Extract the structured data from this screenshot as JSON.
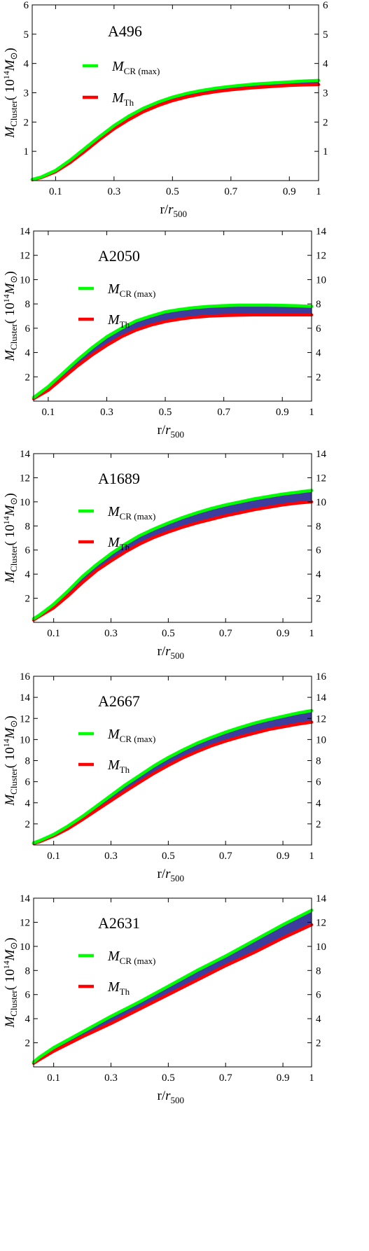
{
  "colors": {
    "upper_line": "#00ff00",
    "lower_line": "#ff0000",
    "band_fill": "#3d3d9e",
    "axis": "#000000"
  },
  "shared": {
    "xlabel_main": "r/",
    "xlabel_r": "r",
    "xlabel_sub": "500",
    "ylabel_M": "M",
    "ylabel_sub": "Cluster",
    "ylabel_open": "( 10",
    "ylabel_sup": "14",
    "ylabel_M2": "M",
    "ylabel_sun": "⊙",
    "ylabel_close": ")",
    "legend_upper_M": "M",
    "legend_upper_sub": "CR (max)",
    "legend_lower_M": "M",
    "legend_lower_sub": "Th"
  },
  "chart_data": [
    {
      "type": "area",
      "title": "A496",
      "xlim": [
        0.02,
        1.0
      ],
      "ylim": [
        0,
        6
      ],
      "x_ticks": [
        "0.1",
        "0.3",
        "0.5",
        "0.7",
        "0.9",
        "1"
      ],
      "x_tick_values": [
        0.1,
        0.3,
        0.5,
        0.7,
        0.9,
        1.0
      ],
      "y_ticks": [
        "1",
        "2",
        "3",
        "4",
        "5",
        "6"
      ],
      "y_tick_values": [
        1,
        2,
        3,
        4,
        5,
        6
      ],
      "x": [
        0.02,
        0.05,
        0.1,
        0.15,
        0.2,
        0.25,
        0.3,
        0.35,
        0.4,
        0.45,
        0.5,
        0.55,
        0.6,
        0.65,
        0.7,
        0.75,
        0.8,
        0.85,
        0.9,
        0.95,
        1.0
      ],
      "series": [
        {
          "name": "M_CR(max)",
          "values": [
            0.04,
            0.12,
            0.35,
            0.7,
            1.1,
            1.5,
            1.88,
            2.2,
            2.47,
            2.68,
            2.85,
            2.98,
            3.08,
            3.16,
            3.22,
            3.27,
            3.31,
            3.34,
            3.37,
            3.4,
            3.42
          ]
        },
        {
          "name": "M_Th",
          "values": [
            0.03,
            0.1,
            0.3,
            0.62,
            1.0,
            1.4,
            1.77,
            2.08,
            2.35,
            2.56,
            2.73,
            2.86,
            2.96,
            3.04,
            3.1,
            3.15,
            3.19,
            3.22,
            3.25,
            3.27,
            3.28
          ]
        }
      ]
    },
    {
      "type": "area",
      "title": "A2050",
      "xlim": [
        0.05,
        1.0
      ],
      "ylim": [
        0,
        14
      ],
      "x_ticks": [
        "0.1",
        "0.3",
        "0.5",
        "0.7",
        "0.9",
        "1"
      ],
      "x_tick_values": [
        0.1,
        0.3,
        0.5,
        0.7,
        0.9,
        1.0
      ],
      "y_ticks": [
        "2",
        "4",
        "6",
        "8",
        "10",
        "12",
        "14"
      ],
      "y_tick_values": [
        2,
        4,
        6,
        8,
        10,
        12,
        14
      ],
      "x": [
        0.05,
        0.1,
        0.15,
        0.2,
        0.25,
        0.3,
        0.35,
        0.4,
        0.45,
        0.5,
        0.55,
        0.6,
        0.65,
        0.7,
        0.75,
        0.8,
        0.85,
        0.9,
        0.95,
        1.0
      ],
      "series": [
        {
          "name": "M_CR(max)",
          "values": [
            0.3,
            1.2,
            2.3,
            3.4,
            4.4,
            5.3,
            6.0,
            6.6,
            7.0,
            7.35,
            7.55,
            7.7,
            7.8,
            7.86,
            7.9,
            7.9,
            7.9,
            7.88,
            7.85,
            7.8
          ]
        },
        {
          "name": "M_Th",
          "values": [
            0.2,
            0.9,
            1.9,
            2.9,
            3.8,
            4.6,
            5.3,
            5.85,
            6.25,
            6.55,
            6.75,
            6.9,
            7.0,
            7.05,
            7.08,
            7.1,
            7.1,
            7.1,
            7.1,
            7.1
          ]
        }
      ]
    },
    {
      "type": "area",
      "title": "A1689",
      "xlim": [
        0.03,
        1.0
      ],
      "ylim": [
        0,
        14
      ],
      "x_ticks": [
        "0.1",
        "0.3",
        "0.5",
        "0.7",
        "0.9",
        "1"
      ],
      "x_tick_values": [
        0.1,
        0.3,
        0.5,
        0.7,
        0.9,
        1.0
      ],
      "y_ticks": [
        "2",
        "4",
        "6",
        "8",
        "10",
        "12",
        "14"
      ],
      "y_tick_values": [
        2,
        4,
        6,
        8,
        10,
        12,
        14
      ],
      "x": [
        0.03,
        0.05,
        0.1,
        0.15,
        0.2,
        0.25,
        0.3,
        0.35,
        0.4,
        0.45,
        0.5,
        0.55,
        0.6,
        0.65,
        0.7,
        0.75,
        0.8,
        0.85,
        0.9,
        0.95,
        1.0
      ],
      "series": [
        {
          "name": "M_CR(max)",
          "values": [
            0.3,
            0.6,
            1.5,
            2.6,
            3.8,
            4.8,
            5.7,
            6.5,
            7.2,
            7.75,
            8.25,
            8.7,
            9.1,
            9.45,
            9.75,
            10.0,
            10.25,
            10.45,
            10.65,
            10.8,
            10.95
          ]
        },
        {
          "name": "M_Th",
          "values": [
            0.2,
            0.5,
            1.2,
            2.2,
            3.3,
            4.3,
            5.1,
            5.85,
            6.5,
            7.05,
            7.5,
            7.9,
            8.25,
            8.55,
            8.85,
            9.1,
            9.35,
            9.55,
            9.75,
            9.9,
            10.0
          ]
        }
      ]
    },
    {
      "type": "area",
      "title": "A2667",
      "xlim": [
        0.03,
        1.0
      ],
      "ylim": [
        0,
        16
      ],
      "x_ticks": [
        "0.1",
        "0.3",
        "0.5",
        "0.7",
        "0.9",
        "1"
      ],
      "x_tick_values": [
        0.1,
        0.3,
        0.5,
        0.7,
        0.9,
        1.0
      ],
      "y_ticks": [
        "2",
        "4",
        "6",
        "8",
        "10",
        "12",
        "14",
        "16"
      ],
      "y_tick_values": [
        2,
        4,
        6,
        8,
        10,
        12,
        14,
        16
      ],
      "x": [
        0.03,
        0.05,
        0.1,
        0.15,
        0.2,
        0.25,
        0.3,
        0.35,
        0.4,
        0.45,
        0.5,
        0.55,
        0.6,
        0.65,
        0.7,
        0.75,
        0.8,
        0.85,
        0.9,
        0.95,
        1.0
      ],
      "series": [
        {
          "name": "M_CR(max)",
          "values": [
            0.2,
            0.4,
            1.0,
            1.8,
            2.7,
            3.7,
            4.7,
            5.7,
            6.6,
            7.5,
            8.3,
            9.0,
            9.65,
            10.2,
            10.7,
            11.15,
            11.55,
            11.9,
            12.2,
            12.5,
            12.75
          ]
        },
        {
          "name": "M_Th",
          "values": [
            0.15,
            0.3,
            0.85,
            1.55,
            2.4,
            3.3,
            4.2,
            5.1,
            5.95,
            6.8,
            7.55,
            8.25,
            8.85,
            9.4,
            9.85,
            10.25,
            10.6,
            10.95,
            11.2,
            11.45,
            11.65
          ]
        }
      ]
    },
    {
      "type": "area",
      "title": "A2631",
      "xlim": [
        0.03,
        1.0
      ],
      "ylim": [
        0,
        14
      ],
      "x_ticks": [
        "0.1",
        "0.3",
        "0.5",
        "0.7",
        "0.9",
        "1"
      ],
      "x_tick_values": [
        0.1,
        0.3,
        0.5,
        0.7,
        0.9,
        1.0
      ],
      "y_ticks": [
        "2",
        "4",
        "6",
        "8",
        "10",
        "12",
        "14"
      ],
      "y_tick_values": [
        2,
        4,
        6,
        8,
        10,
        12,
        14
      ],
      "x": [
        0.03,
        0.05,
        0.1,
        0.2,
        0.3,
        0.4,
        0.5,
        0.6,
        0.7,
        0.8,
        0.9,
        1.0
      ],
      "series": [
        {
          "name": "M_CR(max)",
          "values": [
            0.4,
            0.8,
            1.6,
            2.9,
            4.2,
            5.4,
            6.7,
            8.0,
            9.2,
            10.5,
            11.8,
            13.0
          ]
        },
        {
          "name": "M_Th",
          "values": [
            0.3,
            0.6,
            1.3,
            2.5,
            3.6,
            4.8,
            6.0,
            7.2,
            8.4,
            9.5,
            10.7,
            11.8
          ]
        }
      ]
    }
  ]
}
